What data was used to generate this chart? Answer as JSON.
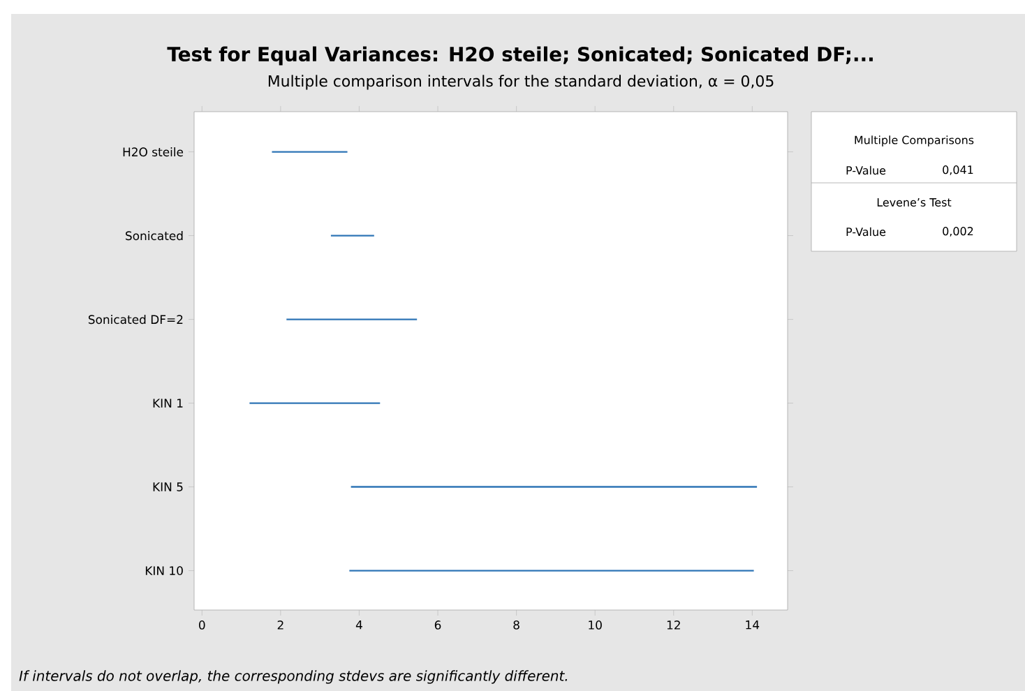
{
  "chart_data": {
    "type": "bar",
    "orientation": "horizontal",
    "title": "Test for Equal Variances: H2O steile; Sonicated; Sonicated DF;...",
    "subtitle": "Multiple comparison intervals for the standard deviation, α = 0,05",
    "categories": [
      "H2O steile",
      "Sonicated",
      "Sonicated DF=2",
      "KIN 1",
      "KIN 5",
      "KIN 10"
    ],
    "base": [
      1.78,
      3.28,
      2.15,
      1.21,
      3.79,
      3.75
    ],
    "values": [
      1.92,
      1.1,
      3.32,
      3.32,
      10.33,
      10.29
    ],
    "color": "#2e75b6",
    "xlim": [
      -0.2,
      14.9
    ],
    "xticks": [
      0,
      2,
      4,
      6,
      8,
      10,
      12,
      14
    ],
    "annotations": [
      "If intervals do not overlap, the corresponding stdevs are significantly different.",
      "Multiple Comparisons",
      "P-Value",
      "0,041",
      "Levene’s Test",
      "P-Value",
      "0,002"
    ]
  }
}
